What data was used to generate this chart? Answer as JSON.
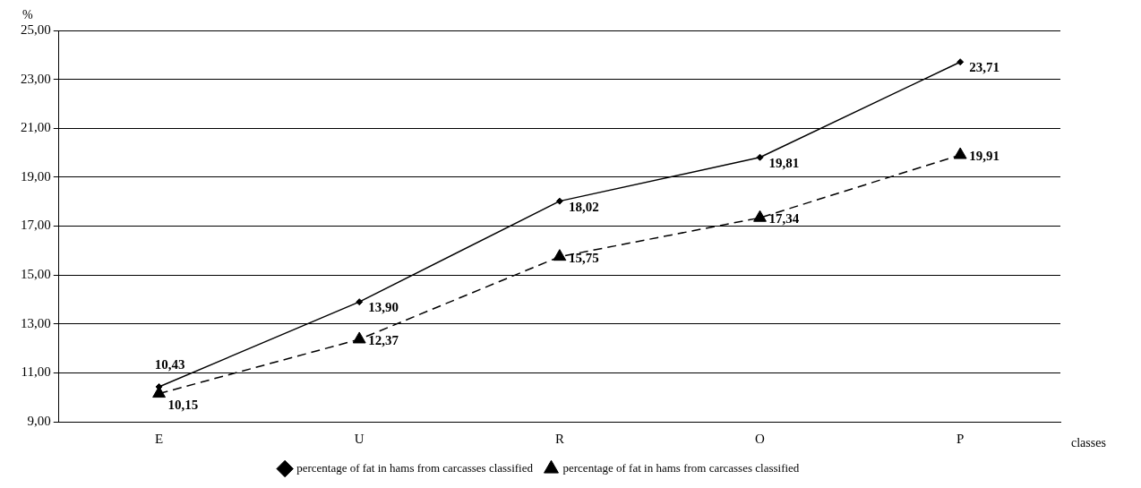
{
  "chart_data": {
    "type": "line",
    "xlabel": "classes",
    "ylabel": "%",
    "categories": [
      "E",
      "U",
      "R",
      "O",
      "P"
    ],
    "series": [
      {
        "name": "percentage of fat in hams from carcasses classified",
        "color": "#000000",
        "marker": "diamond",
        "line_style": "solid",
        "values": [
          10.43,
          13.9,
          18.02,
          19.81,
          23.71
        ],
        "value_labels": [
          "10,43",
          "13,90",
          "18,02",
          "19,81",
          "23,71"
        ]
      },
      {
        "name": "percentage of fat in hams from carcasses classified",
        "color": "#000000",
        "marker": "triangle",
        "line_style": "dashed",
        "values": [
          10.15,
          12.37,
          15.75,
          17.34,
          19.91
        ],
        "value_labels": [
          "10,15",
          "12,37",
          "15,75",
          "17,34",
          "19,91"
        ]
      }
    ],
    "ylim": [
      9,
      25
    ],
    "yticks": [
      {
        "value": 9,
        "label": "9,00"
      },
      {
        "value": 11,
        "label": "11,00"
      },
      {
        "value": 13,
        "label": "13,00"
      },
      {
        "value": 15,
        "label": "15,00"
      },
      {
        "value": 17,
        "label": "17,00"
      },
      {
        "value": 19,
        "label": "19,00"
      },
      {
        "value": 21,
        "label": "21,00"
      },
      {
        "value": 23,
        "label": "23,00"
      },
      {
        "value": 25,
        "label": "25,00"
      }
    ],
    "grid": "y",
    "legend": "bottom"
  }
}
